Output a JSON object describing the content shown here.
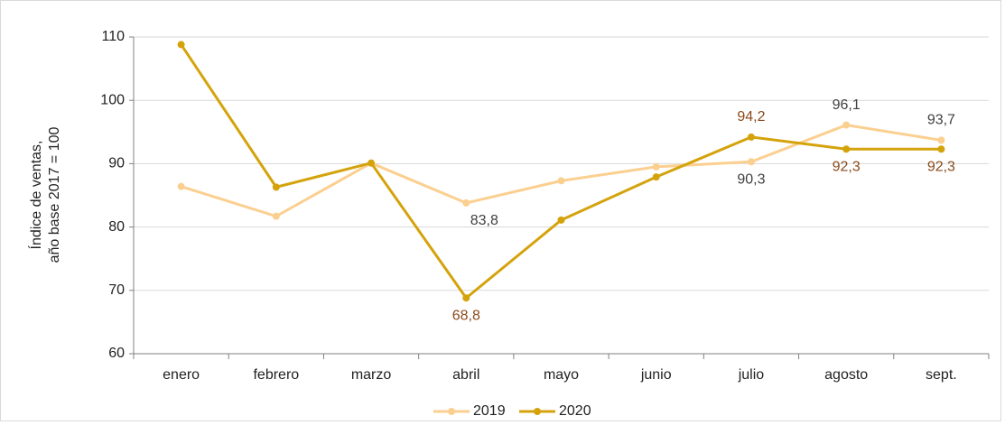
{
  "chart_data": {
    "type": "line",
    "ylabel": [
      "Índice de ventas,",
      "año base 2017 = 100"
    ],
    "categories": [
      "enero",
      "febrero",
      "marzo",
      "abril",
      "mayo",
      "junio",
      "julio",
      "agosto",
      "sept."
    ],
    "series": [
      {
        "name": "2019",
        "color": "#fbcf8f",
        "label_color": "#404040",
        "values": [
          86.4,
          81.7,
          90.1,
          83.8,
          87.3,
          89.5,
          90.3,
          96.1,
          93.7
        ],
        "value_labels": [
          null,
          null,
          null,
          "83,8",
          null,
          null,
          "90,3",
          "96,1",
          "93,7"
        ]
      },
      {
        "name": "2020",
        "color": "#d4a30c",
        "label_color": "#8a4a1a",
        "values": [
          108.8,
          86.3,
          90.1,
          68.8,
          81.1,
          87.9,
          94.2,
          92.3,
          92.3
        ],
        "value_labels": [
          null,
          null,
          null,
          "68,8",
          null,
          null,
          "94,2",
          "92,3",
          "92,3"
        ]
      }
    ],
    "ylim": [
      60,
      110
    ],
    "yticks": [
      60,
      70,
      80,
      90,
      100,
      110
    ],
    "grid": true,
    "legend": "bottom"
  }
}
